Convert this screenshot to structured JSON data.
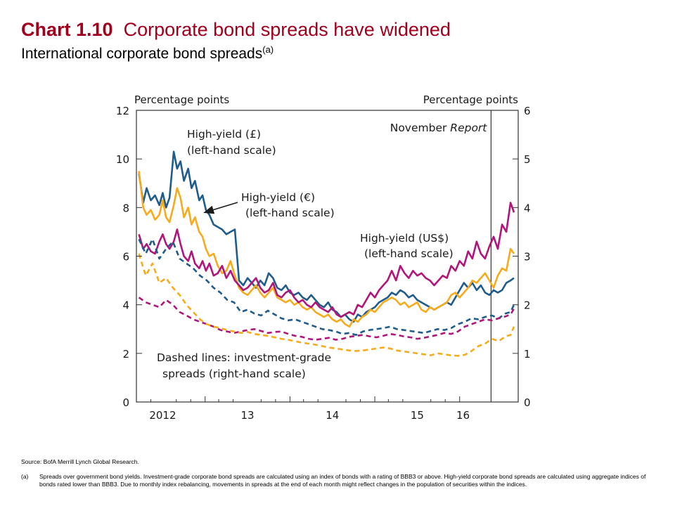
{
  "title": {
    "number": "Chart 1.10",
    "text": "Corporate bond spreads have widened",
    "subtitle": "International corporate bond spreads",
    "subtitle_note": "(a)"
  },
  "chart_data": {
    "type": "line",
    "left_axis": {
      "label": "Percentage points",
      "range": [
        0,
        12
      ],
      "ticks": [
        "0",
        "2",
        "4",
        "6",
        "8",
        "10",
        "12"
      ]
    },
    "right_axis": {
      "label": "Percentage points",
      "range": [
        0,
        6
      ],
      "ticks": [
        "0",
        "1",
        "2",
        "3",
        "4",
        "5",
        "6"
      ]
    },
    "x_range": [
      2011.69,
      2016.19
    ],
    "x_ticks": [
      {
        "label": "2012",
        "x": 2012.0
      },
      {
        "label": "13",
        "x": 2013.0
      },
      {
        "label": "14",
        "x": 2014.0
      },
      {
        "label": "15",
        "x": 2015.0
      },
      {
        "label": "16",
        "x": 2015.54
      }
    ],
    "x_dividers": [
      2012.5,
      2013.5,
      2014.5,
      2015.5
    ],
    "x_tick_minor": [
      2011.69,
      2011.86,
      2012.16,
      2012.33,
      2012.66,
      2012.83,
      2013.16,
      2013.33,
      2013.66,
      2013.83,
      2014.16,
      2014.33,
      2014.66,
      2014.83,
      2015.16,
      2015.33
    ],
    "marker_line": {
      "x": 2015.87,
      "label": "November",
      "label_italic": "Report"
    },
    "annotations": {
      "gbp": [
        "High-yield (£)",
        "(left-hand scale)"
      ],
      "eur": [
        "High-yield (€)",
        "(left-hand scale)"
      ],
      "usd": [
        "High-yield (US$)",
        "(left-hand scale)"
      ],
      "dashed": [
        "Dashed lines:  investment-grade",
        "spreads (right-hand scale)"
      ]
    },
    "series": [
      {
        "key": "hy_gbp",
        "color": "#1f5c8c",
        "dashed": false,
        "axis": "left",
        "x": [
          2011.72,
          2011.77,
          2011.81,
          2011.86,
          2011.91,
          2011.96,
          2012.0,
          2012.04,
          2012.08,
          2012.13,
          2012.17,
          2012.21,
          2012.25,
          2012.3,
          2012.34,
          2012.38,
          2012.43,
          2012.47,
          2012.51,
          2012.55,
          2012.6,
          2012.65,
          2012.7,
          2012.75,
          2012.8,
          2012.85,
          2012.9,
          2012.95,
          2013.0,
          2013.05,
          2013.1,
          2013.15,
          2013.2,
          2013.25,
          2013.3,
          2013.35,
          2013.4,
          2013.45,
          2013.5,
          2013.55,
          2013.6,
          2013.65,
          2013.7,
          2013.75,
          2013.8,
          2013.85,
          2013.9,
          2013.95,
          2014.0,
          2014.05,
          2014.1,
          2014.15,
          2014.2,
          2014.25,
          2014.3,
          2014.35,
          2014.4,
          2014.45,
          2014.5,
          2014.55,
          2014.6,
          2014.65,
          2014.7,
          2014.75,
          2014.8,
          2014.85,
          2014.9,
          2014.95,
          2015.0,
          2015.05,
          2015.1,
          2015.15,
          2015.2,
          2015.25,
          2015.3,
          2015.35,
          2015.4,
          2015.45,
          2015.5,
          2015.55,
          2015.6,
          2015.65,
          2015.7,
          2015.75,
          2015.8,
          2015.85,
          2015.9,
          2015.95,
          2016.0,
          2016.05,
          2016.1,
          2016.14
        ],
        "y": [
          9.4,
          8.2,
          8.8,
          8.3,
          8.5,
          8.1,
          8.6,
          8.0,
          8.4,
          10.3,
          9.6,
          9.9,
          9.1,
          9.6,
          8.8,
          9.1,
          8.3,
          8.5,
          7.9,
          7.7,
          7.3,
          7.2,
          7.1,
          6.9,
          7.0,
          7.1,
          5.0,
          4.8,
          5.1,
          4.9,
          4.7,
          5.0,
          4.8,
          5.3,
          5.1,
          4.7,
          4.6,
          4.8,
          4.5,
          4.4,
          4.5,
          4.3,
          4.2,
          4.4,
          4.2,
          4.0,
          3.9,
          4.1,
          3.8,
          3.7,
          3.5,
          3.6,
          3.4,
          3.3,
          3.6,
          3.5,
          3.7,
          3.8,
          3.9,
          4.1,
          4.2,
          4.3,
          4.5,
          4.4,
          4.6,
          4.5,
          4.3,
          4.4,
          4.2,
          4.1,
          4.0,
          3.9,
          3.8,
          3.9,
          4.0,
          4.1,
          4.0,
          4.3,
          4.6,
          4.9,
          4.7,
          4.9,
          4.6,
          4.8,
          4.5,
          4.4,
          4.6,
          4.5,
          4.6,
          4.9,
          5.0,
          5.1
        ]
      },
      {
        "key": "hy_eur",
        "color": "#f6ab1c",
        "dashed": false,
        "axis": "left",
        "x": [
          2011.72,
          2011.77,
          2011.81,
          2011.86,
          2011.91,
          2011.96,
          2012.0,
          2012.04,
          2012.08,
          2012.13,
          2012.17,
          2012.21,
          2012.25,
          2012.3,
          2012.34,
          2012.38,
          2012.43,
          2012.47,
          2012.51,
          2012.55,
          2012.6,
          2012.65,
          2012.7,
          2012.75,
          2012.8,
          2012.85,
          2012.9,
          2012.95,
          2013.0,
          2013.05,
          2013.1,
          2013.15,
          2013.2,
          2013.25,
          2013.3,
          2013.35,
          2013.4,
          2013.45,
          2013.5,
          2013.55,
          2013.6,
          2013.65,
          2013.7,
          2013.75,
          2013.8,
          2013.85,
          2013.9,
          2013.95,
          2014.0,
          2014.05,
          2014.1,
          2014.15,
          2014.2,
          2014.25,
          2014.3,
          2014.35,
          2014.4,
          2014.45,
          2014.5,
          2014.55,
          2014.6,
          2014.65,
          2014.7,
          2014.75,
          2014.8,
          2014.85,
          2014.9,
          2014.95,
          2015.0,
          2015.05,
          2015.1,
          2015.15,
          2015.2,
          2015.25,
          2015.3,
          2015.35,
          2015.4,
          2015.45,
          2015.5,
          2015.55,
          2015.6,
          2015.65,
          2015.7,
          2015.75,
          2015.8,
          2015.85,
          2015.9,
          2015.95,
          2016.0,
          2016.05,
          2016.1,
          2016.14
        ],
        "y": [
          9.5,
          8.0,
          7.7,
          7.9,
          7.5,
          7.7,
          8.3,
          7.6,
          7.4,
          8.1,
          8.8,
          8.4,
          7.6,
          8.0,
          7.3,
          7.6,
          7.0,
          6.8,
          6.3,
          6.0,
          6.1,
          5.6,
          5.3,
          5.4,
          5.8,
          5.2,
          4.7,
          4.5,
          4.4,
          4.6,
          4.8,
          4.5,
          4.3,
          4.5,
          4.7,
          4.3,
          4.2,
          4.1,
          4.2,
          4.0,
          4.1,
          3.9,
          3.8,
          3.9,
          3.7,
          3.6,
          3.5,
          3.6,
          3.4,
          3.3,
          3.4,
          3.2,
          3.1,
          3.4,
          3.3,
          3.5,
          3.6,
          3.8,
          3.7,
          3.9,
          4.1,
          4.2,
          4.3,
          4.2,
          4.0,
          4.1,
          3.9,
          4.0,
          4.1,
          3.8,
          3.7,
          3.9,
          3.8,
          3.9,
          4.0,
          4.1,
          4.4,
          4.5,
          4.3,
          4.5,
          4.7,
          5.0,
          4.9,
          5.1,
          5.3,
          5.0,
          4.7,
          5.2,
          5.5,
          5.4,
          6.3,
          6.1
        ]
      },
      {
        "key": "hy_usd",
        "color": "#b0157a",
        "dashed": false,
        "axis": "left",
        "x": [
          2011.72,
          2011.77,
          2011.81,
          2011.86,
          2011.91,
          2011.96,
          2012.0,
          2012.04,
          2012.08,
          2012.13,
          2012.17,
          2012.21,
          2012.25,
          2012.3,
          2012.34,
          2012.38,
          2012.43,
          2012.47,
          2012.51,
          2012.55,
          2012.6,
          2012.65,
          2012.7,
          2012.75,
          2012.8,
          2012.85,
          2012.9,
          2012.95,
          2013.0,
          2013.05,
          2013.1,
          2013.15,
          2013.2,
          2013.25,
          2013.3,
          2013.35,
          2013.4,
          2013.45,
          2013.5,
          2013.55,
          2013.6,
          2013.65,
          2013.7,
          2013.75,
          2013.8,
          2013.85,
          2013.9,
          2013.95,
          2014.0,
          2014.05,
          2014.1,
          2014.15,
          2014.2,
          2014.25,
          2014.3,
          2014.35,
          2014.4,
          2014.45,
          2014.5,
          2014.55,
          2014.6,
          2014.65,
          2014.7,
          2014.75,
          2014.8,
          2014.85,
          2014.9,
          2014.95,
          2015.0,
          2015.05,
          2015.1,
          2015.15,
          2015.2,
          2015.25,
          2015.3,
          2015.35,
          2015.4,
          2015.45,
          2015.5,
          2015.55,
          2015.6,
          2015.65,
          2015.7,
          2015.75,
          2015.8,
          2015.85,
          2015.9,
          2015.95,
          2016.0,
          2016.05,
          2016.1,
          2016.14
        ],
        "y": [
          6.9,
          6.3,
          6.5,
          6.2,
          6.1,
          6.6,
          6.9,
          6.5,
          6.3,
          6.6,
          7.1,
          6.5,
          6.0,
          5.8,
          6.2,
          5.7,
          5.5,
          5.8,
          5.4,
          5.7,
          5.2,
          5.3,
          5.6,
          5.1,
          5.4,
          5.0,
          4.8,
          4.6,
          4.7,
          4.9,
          5.1,
          4.7,
          4.5,
          4.6,
          4.9,
          4.4,
          4.3,
          4.5,
          4.6,
          4.3,
          4.1,
          4.2,
          4.0,
          3.9,
          4.1,
          3.9,
          3.8,
          3.7,
          3.9,
          3.6,
          3.5,
          3.6,
          3.7,
          3.6,
          4.0,
          3.9,
          4.2,
          4.5,
          4.3,
          4.6,
          4.8,
          5.0,
          5.4,
          5.0,
          5.6,
          5.3,
          5.1,
          5.4,
          5.2,
          5.3,
          5.1,
          5.0,
          4.8,
          5.0,
          5.2,
          5.1,
          5.6,
          5.4,
          5.8,
          5.6,
          6.2,
          5.9,
          6.6,
          6.1,
          5.9,
          6.4,
          6.8,
          6.3,
          7.3,
          7.0,
          8.2,
          7.8
        ]
      },
      {
        "key": "ig_gbp",
        "color": "#1f5c8c",
        "dashed": true,
        "axis": "right",
        "x": [
          2011.72,
          2011.8,
          2011.88,
          2011.96,
          2012.04,
          2012.12,
          2012.2,
          2012.28,
          2012.36,
          2012.44,
          2012.52,
          2012.6,
          2012.68,
          2012.76,
          2012.84,
          2012.92,
          2013.0,
          2013.08,
          2013.16,
          2013.24,
          2013.32,
          2013.4,
          2013.48,
          2013.56,
          2013.64,
          2013.72,
          2013.8,
          2013.88,
          2013.96,
          2014.04,
          2014.12,
          2014.2,
          2014.28,
          2014.36,
          2014.44,
          2014.52,
          2014.6,
          2014.68,
          2014.76,
          2014.84,
          2014.92,
          2015.0,
          2015.08,
          2015.16,
          2015.24,
          2015.32,
          2015.4,
          2015.48,
          2015.56,
          2015.64,
          2015.72,
          2015.8,
          2015.88,
          2015.96,
          2016.04,
          2016.1,
          2016.14
        ],
        "y": [
          3.35,
          3.05,
          3.35,
          2.95,
          3.15,
          3.3,
          2.95,
          2.85,
          2.75,
          2.6,
          2.5,
          2.35,
          2.25,
          2.1,
          2.05,
          1.85,
          1.9,
          1.82,
          1.78,
          1.88,
          1.8,
          1.72,
          1.68,
          1.7,
          1.65,
          1.6,
          1.55,
          1.5,
          1.48,
          1.45,
          1.4,
          1.42,
          1.38,
          1.45,
          1.48,
          1.5,
          1.52,
          1.55,
          1.5,
          1.48,
          1.46,
          1.44,
          1.42,
          1.46,
          1.5,
          1.48,
          1.52,
          1.6,
          1.65,
          1.72,
          1.7,
          1.75,
          1.78,
          1.72,
          1.82,
          1.85,
          2.0
        ]
      },
      {
        "key": "ig_usd",
        "color": "#b0157a",
        "dashed": true,
        "axis": "right",
        "x": [
          2011.72,
          2011.8,
          2011.88,
          2011.96,
          2012.04,
          2012.12,
          2012.2,
          2012.28,
          2012.36,
          2012.44,
          2012.52,
          2012.6,
          2012.68,
          2012.76,
          2012.84,
          2012.92,
          2013.0,
          2013.08,
          2013.16,
          2013.24,
          2013.32,
          2013.4,
          2013.48,
          2013.56,
          2013.64,
          2013.72,
          2013.8,
          2013.88,
          2013.96,
          2014.04,
          2014.12,
          2014.2,
          2014.28,
          2014.36,
          2014.44,
          2014.52,
          2014.6,
          2014.68,
          2014.76,
          2014.84,
          2014.92,
          2015.0,
          2015.08,
          2015.16,
          2015.24,
          2015.32,
          2015.4,
          2015.48,
          2015.56,
          2015.64,
          2015.72,
          2015.8,
          2015.88,
          2015.96,
          2016.04,
          2016.1,
          2016.14
        ],
        "y": [
          2.15,
          2.05,
          2.0,
          1.95,
          2.1,
          2.0,
          1.85,
          1.78,
          1.7,
          1.65,
          1.6,
          1.55,
          1.48,
          1.45,
          1.42,
          1.45,
          1.48,
          1.5,
          1.46,
          1.42,
          1.44,
          1.45,
          1.4,
          1.36,
          1.34,
          1.3,
          1.28,
          1.3,
          1.32,
          1.28,
          1.3,
          1.34,
          1.36,
          1.38,
          1.35,
          1.33,
          1.36,
          1.4,
          1.38,
          1.35,
          1.33,
          1.3,
          1.32,
          1.35,
          1.38,
          1.42,
          1.4,
          1.45,
          1.55,
          1.6,
          1.65,
          1.7,
          1.68,
          1.72,
          1.76,
          1.8,
          1.92
        ]
      },
      {
        "key": "ig_eur",
        "color": "#f6ab1c",
        "dashed": true,
        "axis": "right",
        "x": [
          2011.72,
          2011.8,
          2011.88,
          2011.96,
          2012.04,
          2012.12,
          2012.2,
          2012.28,
          2012.36,
          2012.44,
          2012.52,
          2012.6,
          2012.68,
          2012.76,
          2012.84,
          2012.92,
          2013.0,
          2013.08,
          2013.16,
          2013.24,
          2013.32,
          2013.4,
          2013.48,
          2013.56,
          2013.64,
          2013.72,
          2013.8,
          2013.88,
          2013.96,
          2014.04,
          2014.12,
          2014.2,
          2014.28,
          2014.36,
          2014.44,
          2014.52,
          2014.6,
          2014.68,
          2014.76,
          2014.84,
          2014.92,
          2015.0,
          2015.08,
          2015.16,
          2015.24,
          2015.32,
          2015.4,
          2015.48,
          2015.56,
          2015.64,
          2015.72,
          2015.8,
          2015.88,
          2015.96,
          2016.04,
          2016.1,
          2016.14
        ],
        "y": [
          3.05,
          2.6,
          2.85,
          2.45,
          2.55,
          2.35,
          2.2,
          2.0,
          1.85,
          1.7,
          1.6,
          1.55,
          1.52,
          1.48,
          1.45,
          1.42,
          1.44,
          1.4,
          1.38,
          1.36,
          1.33,
          1.3,
          1.28,
          1.25,
          1.22,
          1.2,
          1.18,
          1.15,
          1.12,
          1.1,
          1.08,
          1.06,
          1.05,
          1.06,
          1.08,
          1.1,
          1.12,
          1.1,
          1.06,
          1.04,
          1.02,
          1.0,
          0.98,
          0.96,
          1.0,
          0.98,
          0.96,
          0.95,
          0.97,
          1.05,
          1.15,
          1.2,
          1.3,
          1.25,
          1.35,
          1.38,
          1.55
        ]
      }
    ]
  },
  "footnotes": {
    "source": "Source:  BofA Merrill Lynch Global Research.",
    "note_mark": "(a)",
    "note_text": "Spreads over government bond yields.  Investment-grade corporate bond spreads are calculated using an index of bonds with a rating of BBB3 or above.  High-yield corporate bond spreads are calculated using aggregate indices of bonds rated lower than BBB3.  Due to monthly index rebalancing, movements in spreads at the end of each month might reflect changes in the population of securities within the indices."
  }
}
